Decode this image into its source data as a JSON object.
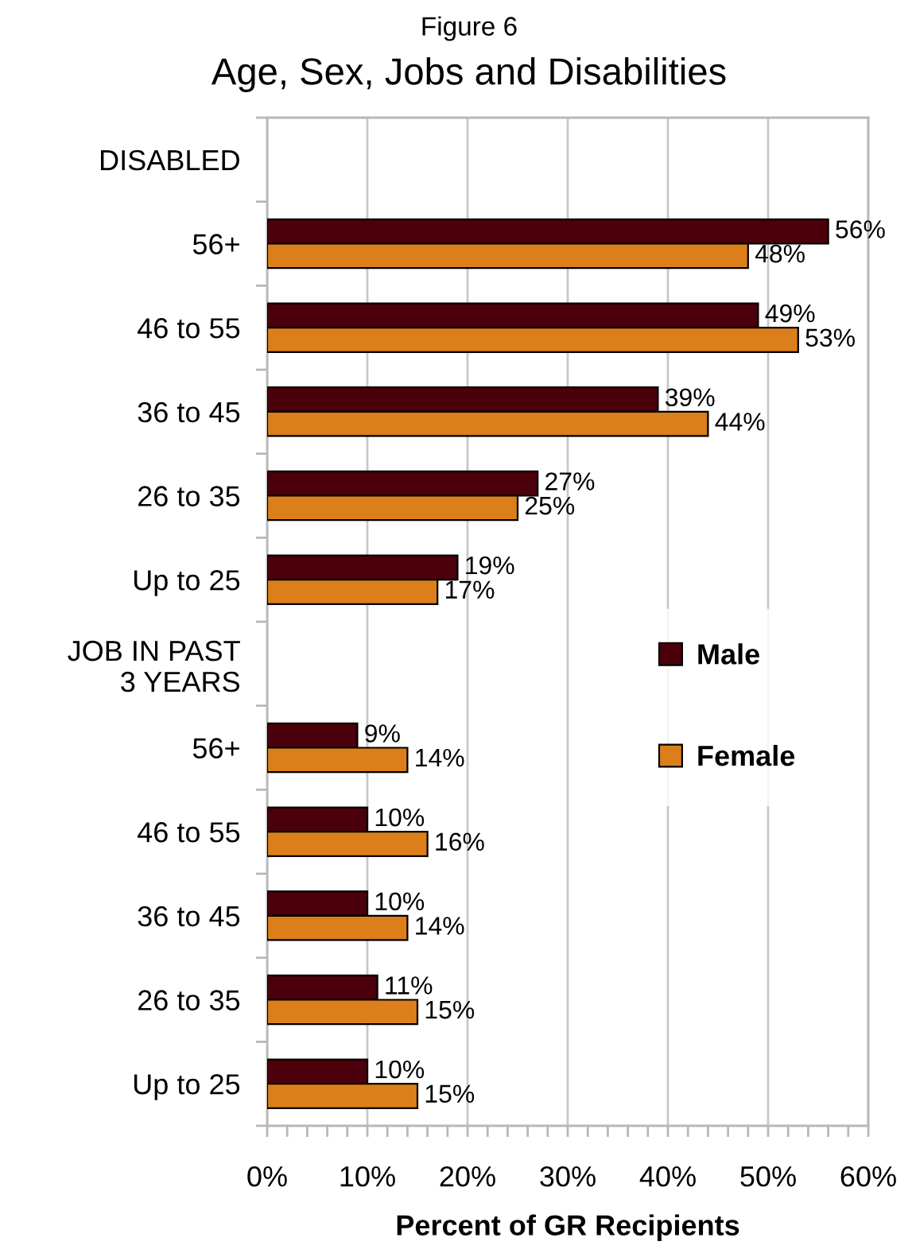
{
  "chart_data": {
    "type": "bar",
    "orientation": "horizontal",
    "title": "Age, Sex, Jobs and Disabilities",
    "subtitle": "Figure 6",
    "xlabel": "Percent of GR Recipients",
    "categories": [
      "DISABLED",
      "56+",
      "46 to 55",
      "36 to 45",
      "26 to 35",
      "Up to 25",
      "JOB IN PAST\n3 YEARS",
      "56+",
      "46 to 55",
      "36 to 45",
      "26 to 35",
      "Up to 25"
    ],
    "series": [
      {
        "name": "Male",
        "color": "#4b000c",
        "values": [
          null,
          56,
          49,
          39,
          27,
          19,
          null,
          9,
          10,
          10,
          11,
          10
        ],
        "value_labels": [
          null,
          "56%",
          "49%",
          "39%",
          "27%",
          "19%",
          null,
          "9%",
          "10%",
          "10%",
          "11%",
          "10%"
        ]
      },
      {
        "name": "Female",
        "color": "#dc7f1a",
        "values": [
          null,
          48,
          53,
          44,
          25,
          17,
          null,
          14,
          16,
          14,
          15,
          15
        ],
        "value_labels": [
          null,
          "48%",
          "53%",
          "44%",
          "25%",
          "17%",
          null,
          "14%",
          "16%",
          "14%",
          "15%",
          "15%"
        ]
      }
    ],
    "xlim": [
      0,
      60
    ],
    "xticks": [
      {
        "value": 0,
        "label": "0%"
      },
      {
        "value": 2,
        "label": null
      },
      {
        "value": 4,
        "label": null
      },
      {
        "value": 6,
        "label": null
      },
      {
        "value": 8,
        "label": null
      },
      {
        "value": 10,
        "label": "10%"
      },
      {
        "value": 12,
        "label": null
      },
      {
        "value": 14,
        "label": null
      },
      {
        "value": 16,
        "label": null
      },
      {
        "value": 18,
        "label": null
      },
      {
        "value": 20,
        "label": "20%"
      },
      {
        "value": 22,
        "label": null
      },
      {
        "value": 24,
        "label": null
      },
      {
        "value": 26,
        "label": null
      },
      {
        "value": 28,
        "label": null
      },
      {
        "value": 30,
        "label": "30%"
      },
      {
        "value": 32,
        "label": null
      },
      {
        "value": 34,
        "label": null
      },
      {
        "value": 36,
        "label": null
      },
      {
        "value": 38,
        "label": null
      },
      {
        "value": 40,
        "label": "40%"
      },
      {
        "value": 42,
        "label": null
      },
      {
        "value": 44,
        "label": null
      },
      {
        "value": 46,
        "label": null
      },
      {
        "value": 48,
        "label": null
      },
      {
        "value": 50,
        "label": "50%"
      },
      {
        "value": 52,
        "label": null
      },
      {
        "value": 54,
        "label": null
      },
      {
        "value": 56,
        "label": null
      },
      {
        "value": 58,
        "label": null
      },
      {
        "value": 60,
        "label": "60%"
      }
    ],
    "grid": "x",
    "legend": "right"
  }
}
